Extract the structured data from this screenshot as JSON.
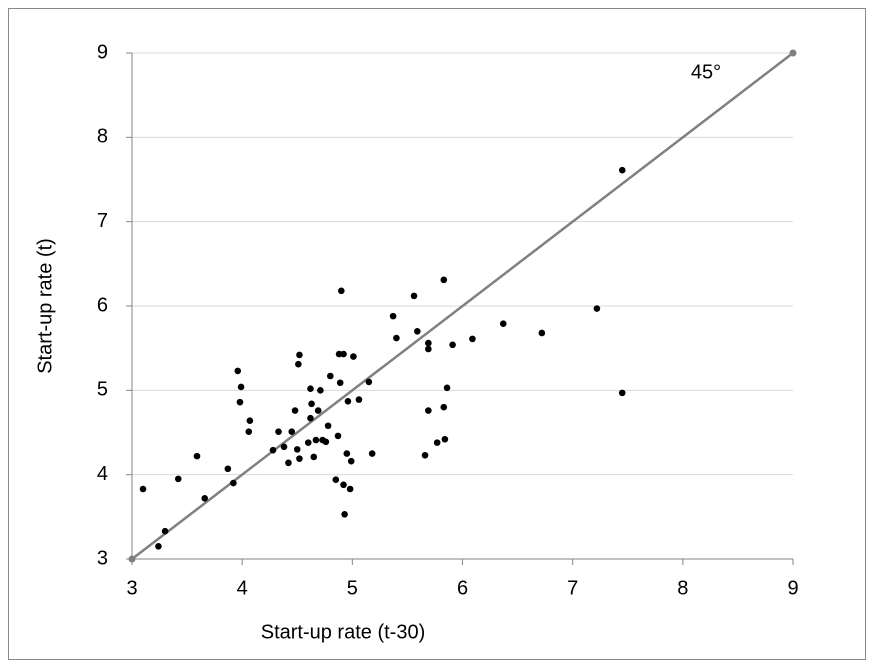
{
  "chart_data": {
    "type": "scatter",
    "x_label": "Start-up rate (t-30)",
    "y_label": "Start-up rate (t)",
    "annotation": "45°",
    "xlim": [
      3,
      9
    ],
    "ylim": [
      3,
      9
    ],
    "xticks": [
      3,
      4,
      5,
      6,
      7,
      8,
      9
    ],
    "yticks": [
      3,
      4,
      5,
      6,
      7,
      8,
      9
    ],
    "grid": true,
    "color": "#000000",
    "x": [
      3.1,
      3.3,
      3.24,
      3.42,
      3.59,
      3.66,
      3.96,
      3.98,
      4.07,
      3.87,
      3.92,
      3.99,
      4.06,
      4.28,
      4.33,
      4.38,
      4.42,
      4.45,
      4.48,
      4.5,
      4.51,
      4.52,
      4.52,
      4.6,
      4.62,
      4.62,
      4.63,
      4.65,
      4.67,
      4.69,
      4.71,
      4.73,
      4.76,
      4.78,
      4.8,
      4.85,
      4.87,
      4.89,
      4.88,
      4.9,
      4.92,
      4.92,
      4.93,
      4.95,
      4.96,
      4.98,
      4.99,
      5.01,
      5.06,
      5.15,
      5.18,
      5.37,
      5.4,
      5.56,
      5.59,
      5.66,
      5.69,
      5.69,
      5.69,
      5.77,
      5.83,
      5.83,
      5.84,
      5.86,
      5.91,
      6.09,
      6.37,
      6.72,
      7.22,
      7.45,
      7.45
    ],
    "values": [
      3.83,
      3.33,
      3.15,
      3.95,
      4.22,
      3.72,
      5.23,
      4.86,
      4.64,
      4.07,
      3.9,
      5.04,
      4.51,
      4.29,
      4.51,
      4.33,
      4.14,
      4.51,
      4.76,
      4.3,
      5.31,
      5.42,
      4.19,
      4.38,
      4.67,
      5.02,
      4.84,
      4.21,
      4.41,
      4.76,
      5.0,
      4.41,
      4.39,
      4.58,
      5.17,
      3.94,
      4.46,
      5.09,
      5.43,
      6.18,
      5.43,
      3.88,
      3.53,
      4.25,
      4.87,
      3.83,
      4.16,
      5.4,
      4.89,
      5.1,
      4.25,
      5.88,
      5.62,
      6.12,
      5.7,
      4.23,
      5.56,
      5.49,
      4.76,
      4.38,
      6.31,
      4.8,
      4.42,
      5.03,
      5.54,
      5.61,
      5.79,
      5.68,
      5.97,
      7.61,
      4.97
    ],
    "reference_line": {
      "x": [
        3,
        9
      ],
      "y": [
        3,
        9
      ],
      "color": "#808080"
    }
  }
}
